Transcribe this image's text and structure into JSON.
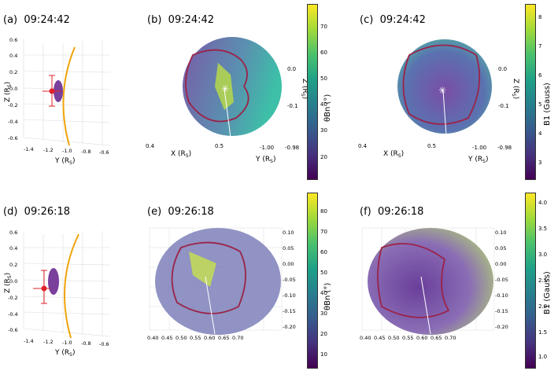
{
  "panels": [
    {
      "id": "a",
      "label": "(a)",
      "time": "09:24:42",
      "kind": "side",
      "yticks": [
        "0.6",
        "0.4",
        "0.2",
        "0.0",
        "-0.2",
        "-0.4",
        "-0.6"
      ],
      "xticks": [
        "-1.4",
        "-1.2",
        "-1.0",
        "-0.8",
        "-0.6"
      ],
      "ylabel": "Z (R",
      "xlabel": "Y (R"
    },
    {
      "id": "b",
      "label": "(b)",
      "time": "09:24:42",
      "kind": "sphere",
      "zticks": [
        "0.0",
        "-0.1"
      ],
      "zlabel": "Z (R",
      "xticks": [
        "0.4",
        "0.5"
      ],
      "xlabel": "X (R",
      "ytick_a": "-1.00",
      "ytick_b": "-0.98",
      "ylabel2": "Y (R",
      "colorbar": {
        "label": "θBn (°)",
        "ticks": [
          "70",
          "60",
          "50",
          "40",
          "30",
          "20"
        ]
      }
    },
    {
      "id": "c",
      "label": "(c)",
      "time": "09:24:42",
      "kind": "sphere",
      "zticks": [
        "0.0",
        "-0.1"
      ],
      "zlabel": "Z (R",
      "xticks": [
        "0.4",
        "0.5"
      ],
      "xlabel": "X (R",
      "ytick_a": "-1.00",
      "ytick_b": "-0.98",
      "ylabel2": "Y (R",
      "colorbar": {
        "label": "B1 (Gauss)",
        "ticks": [
          "8",
          "7",
          "6",
          "5",
          "4",
          "3"
        ]
      }
    },
    {
      "id": "d",
      "label": "(d)",
      "time": "09:26:18",
      "kind": "side",
      "yticks": [
        "0.6",
        "0.4",
        "0.2",
        "0.0",
        "-0.2",
        "-0.4",
        "-0.6"
      ],
      "xticks": [
        "-1.4",
        "-1.2",
        "-1.0",
        "-0.8",
        "-0.6"
      ],
      "ylabel": "Z (R",
      "xlabel": "Y (R"
    },
    {
      "id": "e",
      "label": "(e)",
      "time": "09:26:18",
      "kind": "sphere3d",
      "zticks": [
        "0.10",
        "0.05",
        "0.00",
        "-0.05",
        "-0.10",
        "-0.15",
        "-0.20"
      ],
      "xticks": [
        "0.40",
        "0.45",
        "0.50",
        "0.55",
        "0.60",
        "0.65",
        "0.70"
      ],
      "colorbar": {
        "label": "θBn (°)",
        "ticks": [
          "80",
          "70",
          "60",
          "50",
          "40",
          "30",
          "20",
          "10"
        ]
      }
    },
    {
      "id": "f",
      "label": "(f)",
      "time": "09:26:18",
      "kind": "sphere3d",
      "zticks": [
        "0.10",
        "0.05",
        "0.00",
        "-0.05",
        "-0.10",
        "-0.15",
        "-0.20"
      ],
      "xticks": [
        "0.40",
        "0.45",
        "0.50",
        "0.55",
        "0.60",
        "0.65",
        "0.70"
      ],
      "colorbar": {
        "label": "B1 (Gauss)",
        "ticks": [
          "4.0",
          "3.5",
          "3.0",
          "2.5",
          "2.0",
          "1.5",
          "1.0"
        ]
      }
    }
  ],
  "subscript": "S",
  "colors": {
    "ellipsoid": "#7b3f9c",
    "flank": "#f0a30a",
    "shock_line": "#9b2348",
    "point": "#e0202a",
    "sphere_a": "#6f4aa8",
    "sphere_b": "#2aa8a0"
  }
}
